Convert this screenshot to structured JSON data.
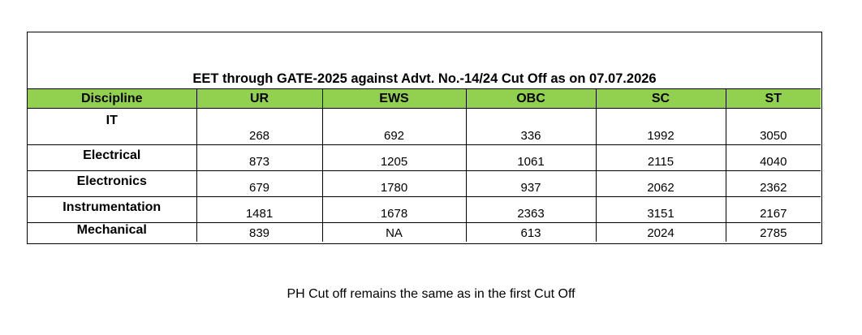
{
  "document": {
    "title": "EET through GATE-2025 against Advt. No.-14/24 Cut Off as on 07.07.2026",
    "note": "PH Cut off remains the same as in the first Cut Off"
  },
  "table": {
    "headers": [
      "Discipline",
      "UR",
      "EWS",
      "OBC",
      "SC",
      "ST"
    ],
    "rows": [
      {
        "discipline": "IT",
        "values": [
          "268",
          "692",
          "336",
          "1992",
          "3050"
        ]
      },
      {
        "discipline": "Electrical",
        "values": [
          "873",
          "1205",
          "1061",
          "2115",
          "4040"
        ]
      },
      {
        "discipline": "Electronics",
        "values": [
          "679",
          "1780",
          "937",
          "2062",
          "2362"
        ]
      },
      {
        "discipline": "Instrumentation",
        "values": [
          "1481",
          "1678",
          "2363",
          "3151",
          "2167"
        ]
      },
      {
        "discipline": "Mechanical",
        "values": [
          "839",
          "NA",
          "613",
          "2024",
          "2785"
        ]
      }
    ]
  },
  "colors": {
    "header_background": "#92d050"
  }
}
